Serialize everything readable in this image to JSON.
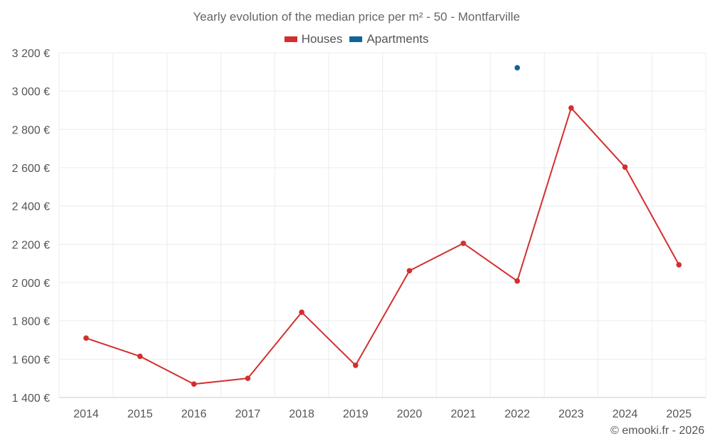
{
  "chart_data": {
    "type": "line",
    "title": "Yearly evolution of the median price per m² - 50 - Montfarville",
    "categories": [
      "2014",
      "2015",
      "2016",
      "2017",
      "2018",
      "2019",
      "2020",
      "2021",
      "2022",
      "2023",
      "2024",
      "2025"
    ],
    "series": [
      {
        "name": "Houses",
        "color": "#d32f2f",
        "values": [
          1710,
          1615,
          1470,
          1500,
          1845,
          1568,
          2062,
          2205,
          2008,
          2912,
          2603,
          2093
        ]
      },
      {
        "name": "Apartments",
        "color": "#0d6696",
        "values": [
          null,
          null,
          null,
          null,
          null,
          null,
          null,
          null,
          3122,
          null,
          null,
          null
        ]
      }
    ],
    "ylim": [
      1400,
      3200
    ],
    "yticks": [
      1400,
      1600,
      1800,
      2000,
      2200,
      2400,
      2600,
      2800,
      3000,
      3200
    ],
    "ytick_labels": [
      "1 400 €",
      "1 600 €",
      "1 800 €",
      "2 000 €",
      "2 200 €",
      "2 400 €",
      "2 600 €",
      "2 800 €",
      "3 000 €",
      "3 200 €"
    ],
    "xlabel": "",
    "ylabel": "",
    "grid": true,
    "legend_position": "top-center"
  },
  "credit": "© emooki.fr - 2026"
}
